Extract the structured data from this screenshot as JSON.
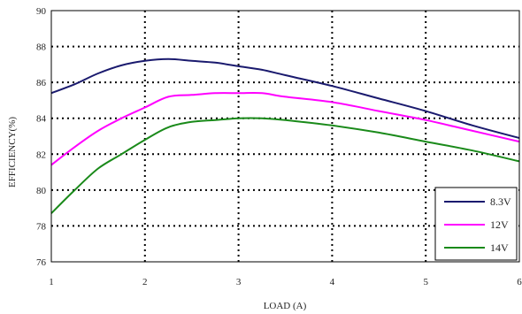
{
  "chart_data": {
    "type": "line",
    "title": "",
    "xlabel": "LOAD (A)",
    "ylabel": "EFFICIENCY(%)",
    "xlim": [
      1,
      6
    ],
    "ylim": [
      76,
      90
    ],
    "xticks": [
      1,
      2,
      3,
      4,
      5,
      6
    ],
    "yticks": [
      76,
      78,
      80,
      82,
      84,
      86,
      88,
      90
    ],
    "grid": "dotted",
    "legend_position": "bottom-right",
    "series": [
      {
        "name": "8.3V",
        "color": "#1a1a6e",
        "x": [
          1,
          1.25,
          1.5,
          1.75,
          2,
          2.25,
          2.5,
          2.75,
          3,
          3.25,
          3.5,
          4,
          4.5,
          5,
          5.5,
          6
        ],
        "y": [
          85.4,
          85.9,
          86.5,
          86.95,
          87.2,
          87.3,
          87.2,
          87.1,
          86.9,
          86.7,
          86.4,
          85.8,
          85.1,
          84.4,
          83.6,
          82.9
        ]
      },
      {
        "name": "12V",
        "color": "#ff00ff",
        "x": [
          1,
          1.25,
          1.5,
          1.75,
          2,
          2.25,
          2.5,
          2.75,
          3,
          3.25,
          3.5,
          4,
          4.5,
          5,
          5.5,
          6
        ],
        "y": [
          81.4,
          82.4,
          83.3,
          84.0,
          84.6,
          85.2,
          85.3,
          85.4,
          85.4,
          85.4,
          85.2,
          84.9,
          84.4,
          83.9,
          83.3,
          82.7
        ]
      },
      {
        "name": "14V",
        "color": "#1a8a1a",
        "x": [
          1,
          1.25,
          1.5,
          1.75,
          2,
          2.25,
          2.5,
          2.75,
          3,
          3.25,
          3.5,
          4,
          4.5,
          5,
          5.5,
          6
        ],
        "y": [
          78.7,
          80.0,
          81.2,
          82.0,
          82.8,
          83.5,
          83.8,
          83.9,
          84.0,
          84.0,
          83.9,
          83.6,
          83.2,
          82.7,
          82.2,
          81.6
        ]
      }
    ]
  }
}
